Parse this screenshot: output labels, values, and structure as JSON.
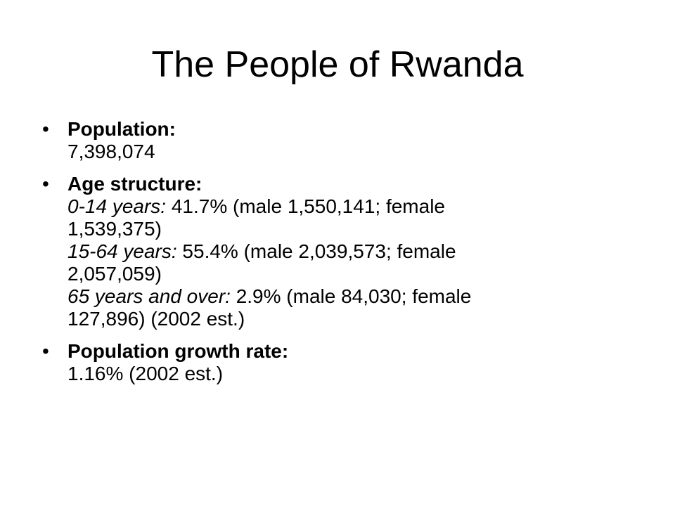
{
  "slide": {
    "title": "The People of Rwanda",
    "bullet_glyph": "•",
    "population": {
      "label": "Population:",
      "value": "7,398,074"
    },
    "age_structure": {
      "label": "Age structure:",
      "groups": [
        {
          "range": "0-14 years:",
          "line1": " 41.7% (male 1,550,141; female",
          "line2": "1,539,375)"
        },
        {
          "range": "15-64 years:",
          "line1": " 55.4% (male 2,039,573; female",
          "line2": "2,057,059)"
        },
        {
          "range": "65 years and over:",
          "line1": " 2.9% (male 84,030; female",
          "line2": "127,896) (2002 est.)"
        }
      ]
    },
    "growth_rate": {
      "label": "Population growth rate:",
      "value": "1.16% (2002 est.)"
    }
  }
}
